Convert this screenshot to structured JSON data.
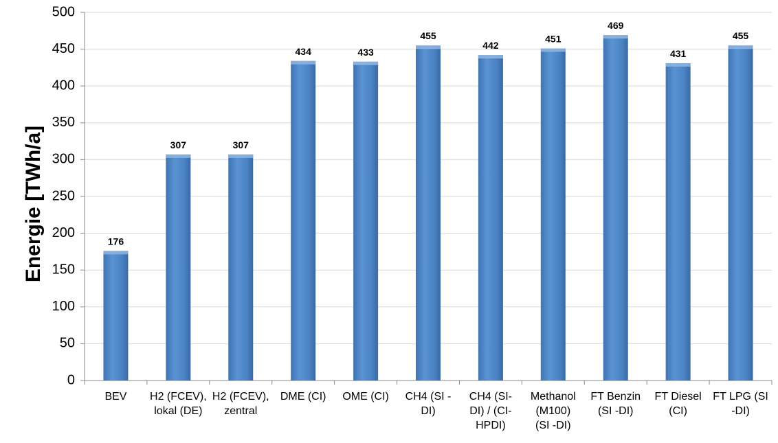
{
  "chart_data": {
    "type": "bar",
    "ylabel": "Energie [TWh/a]",
    "xlabel": "",
    "ylim": [
      0,
      500
    ],
    "yticks": [
      0,
      50,
      100,
      150,
      200,
      250,
      300,
      350,
      400,
      450,
      500
    ],
    "grid": true,
    "categories": [
      "BEV",
      "H2 (FCEV), lokal (DE)",
      "H2 (FCEV), zentral",
      "DME (CI)",
      "OME (CI)",
      "CH4 (SI - DI)",
      "CH4 (SI- DI) / (CI- HPDI)",
      "Methanol (M100) (SI -DI)",
      "FT Benzin (SI -DI)",
      "FT Diesel (CI)",
      "FT LPG (SI -DI)"
    ],
    "category_lines": [
      [
        "BEV"
      ],
      [
        "H2 (FCEV),",
        "lokal (DE)"
      ],
      [
        "H2 (FCEV),",
        "zentral"
      ],
      [
        "DME (CI)"
      ],
      [
        "OME (CI)"
      ],
      [
        "CH4 (SI -",
        "DI)"
      ],
      [
        "CH4 (SI-",
        "DI) / (CI-",
        "HPDI)"
      ],
      [
        "Methanol",
        "(M100)",
        "(SI -DI)"
      ],
      [
        "FT Benzin",
        "(SI -DI)"
      ],
      [
        "FT Diesel",
        "(CI)"
      ],
      [
        "FT LPG (SI",
        "-DI)"
      ]
    ],
    "values": [
      176,
      307,
      307,
      434,
      433,
      455,
      442,
      451,
      469,
      431,
      455
    ],
    "bar_color": "#4a82c3"
  }
}
